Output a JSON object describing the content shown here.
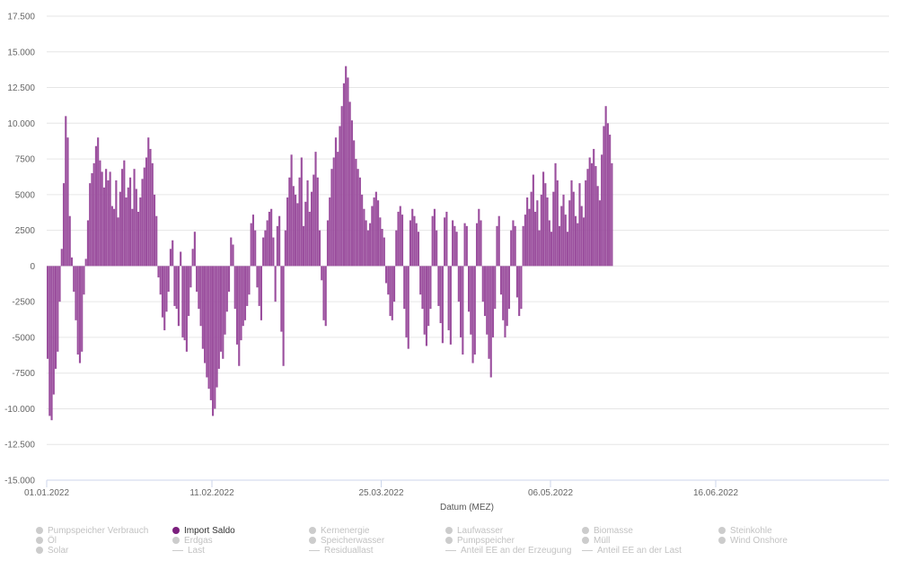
{
  "chart_data": {
    "type": "bar",
    "xlabel": "Datum (MEZ)",
    "x_ticks": [
      "01.01.2022",
      "11.02.2022",
      "25.03.2022",
      "06.05.2022",
      "16.06.2022"
    ],
    "x_range": [
      "01.01.2022",
      "29.07.2022"
    ],
    "ylim": [
      -15000,
      17500
    ],
    "y_ticks": [
      {
        "value": 17500,
        "label": "17.500"
      },
      {
        "value": 15000,
        "label": "15.000"
      },
      {
        "value": 12500,
        "label": "12.500"
      },
      {
        "value": 10000,
        "label": "10.000"
      },
      {
        "value": 7500,
        "label": "7500"
      },
      {
        "value": 5000,
        "label": "5000"
      },
      {
        "value": 2500,
        "label": "2500"
      },
      {
        "value": 0,
        "label": "0"
      },
      {
        "value": -2500,
        "label": "-2500"
      },
      {
        "value": -5000,
        "label": "-5000"
      },
      {
        "value": -7500,
        "label": "-7500"
      },
      {
        "value": -10000,
        "label": "-10.000"
      },
      {
        "value": -12500,
        "label": "-12.500"
      },
      {
        "value": -15000,
        "label": "-15.000"
      }
    ],
    "grid": true,
    "series": [
      {
        "name": "Import Saldo",
        "color": "#9b4f9e",
        "x_start": "01.01.2022",
        "step": "12h",
        "values": [
          -6500,
          -10500,
          -10800,
          -9000,
          -7200,
          -6000,
          -2500,
          1200,
          5800,
          10500,
          9000,
          3500,
          600,
          -1800,
          -3800,
          -6200,
          -6800,
          -6000,
          -2000,
          500,
          3200,
          5800,
          6500,
          7200,
          8400,
          9000,
          7400,
          6600,
          5500,
          6800,
          6000,
          6600,
          4200,
          4000,
          6000,
          3400,
          5200,
          6800,
          7400,
          4800,
          5500,
          6200,
          4000,
          6800,
          5400,
          3800,
          4800,
          6100,
          6900,
          7600,
          9000,
          8200,
          7200,
          5000,
          3500,
          -800,
          -2000,
          -3600,
          -4500,
          -3200,
          -1800,
          1200,
          1800,
          -2800,
          -3000,
          -4200,
          1000,
          -5000,
          -5200,
          -6000,
          -3500,
          -1500,
          1200,
          2400,
          -1800,
          -3000,
          -4200,
          -5800,
          -6800,
          -7800,
          -8600,
          -9400,
          -10500,
          -10000,
          -8500,
          -7200,
          -6000,
          -6500,
          -4800,
          -3200,
          -1800,
          2000,
          1500,
          -3000,
          -5500,
          -7000,
          -5200,
          -4200,
          -3800,
          -2800,
          -2000,
          3000,
          3600,
          2500,
          -1500,
          -2800,
          -3800,
          2000,
          2500,
          3200,
          3800,
          4000,
          2000,
          -2500,
          2800,
          3500,
          -4600,
          -7000,
          2500,
          4800,
          6200,
          7800,
          5600,
          5000,
          4400,
          6200,
          7600,
          2800,
          4500,
          6000,
          3800,
          5200,
          6400,
          8000,
          6200,
          2500,
          -1000,
          -3800,
          -4200,
          3200,
          4800,
          6800,
          7600,
          9000,
          8000,
          9800,
          11200,
          12800,
          14000,
          13200,
          11500,
          10200,
          8800,
          7500,
          6800,
          6200,
          5000,
          4000,
          3200,
          2500,
          3000,
          4200,
          4800,
          5200,
          4600,
          3400,
          2600,
          2000,
          -1200,
          -2000,
          -3500,
          -3800,
          -2500,
          2500,
          3800,
          4200,
          3600,
          -3000,
          -5000,
          -5800,
          3200,
          4000,
          3500,
          3000,
          2400,
          -2000,
          -3000,
          -4800,
          -5600,
          -4200,
          -3000,
          3500,
          4000,
          2500,
          -2800,
          -4000,
          -5400,
          3400,
          3800,
          -4500,
          -5500,
          3200,
          2800,
          2400,
          -2500,
          -5000,
          -6200,
          3000,
          2800,
          -3200,
          -4800,
          -6800,
          -6200,
          3000,
          4000,
          3200,
          -2500,
          -3500,
          -4800,
          -6500,
          -7800,
          -5000,
          -3000,
          2800,
          3500,
          -2000,
          -3800,
          -5000,
          -4200,
          -3000,
          2500,
          3200,
          2800,
          -2200,
          -3500,
          -3000,
          2800,
          3600,
          4800,
          4000,
          5200,
          6400,
          3800,
          4600,
          2500,
          5000,
          6600,
          5800,
          4800,
          3200,
          2400,
          5200,
          7200,
          6000,
          2800,
          4200,
          5000,
          3600,
          2400,
          4600,
          6000,
          5200,
          3500,
          3000,
          5800,
          4200,
          3400,
          6000,
          6800,
          7600,
          7200,
          8200,
          7000,
          5600,
          4600,
          7800,
          9800,
          11200,
          10000,
          9200,
          7200
        ]
      }
    ]
  },
  "legend": [
    {
      "label": "Pumpspeicher Verbrauch",
      "marker": "dot",
      "active": false
    },
    {
      "label": "Import Saldo",
      "marker": "dot",
      "active": true
    },
    {
      "label": "Kernenergie",
      "marker": "dot",
      "active": false
    },
    {
      "label": "Laufwasser",
      "marker": "dot",
      "active": false
    },
    {
      "label": "Biomasse",
      "marker": "dot",
      "active": false
    },
    {
      "label": "Steinkohle",
      "marker": "dot",
      "active": false
    },
    {
      "label": "Öl",
      "marker": "dot",
      "active": false
    },
    {
      "label": "Erdgas",
      "marker": "dot",
      "active": false
    },
    {
      "label": "Speicherwasser",
      "marker": "dot",
      "active": false
    },
    {
      "label": "Pumpspeicher",
      "marker": "dot",
      "active": false
    },
    {
      "label": "Müll",
      "marker": "dot",
      "active": false
    },
    {
      "label": "Wind Onshore",
      "marker": "dot",
      "active": false
    },
    {
      "label": "Solar",
      "marker": "dot",
      "active": false
    },
    {
      "label": "Last",
      "marker": "line",
      "active": false
    },
    {
      "label": "Residuallast",
      "marker": "line",
      "active": false
    },
    {
      "label": "Anteil EE an der Erzeugung",
      "marker": "line",
      "active": false
    },
    {
      "label": "Anteil EE an der Last",
      "marker": "line",
      "active": false
    }
  ]
}
